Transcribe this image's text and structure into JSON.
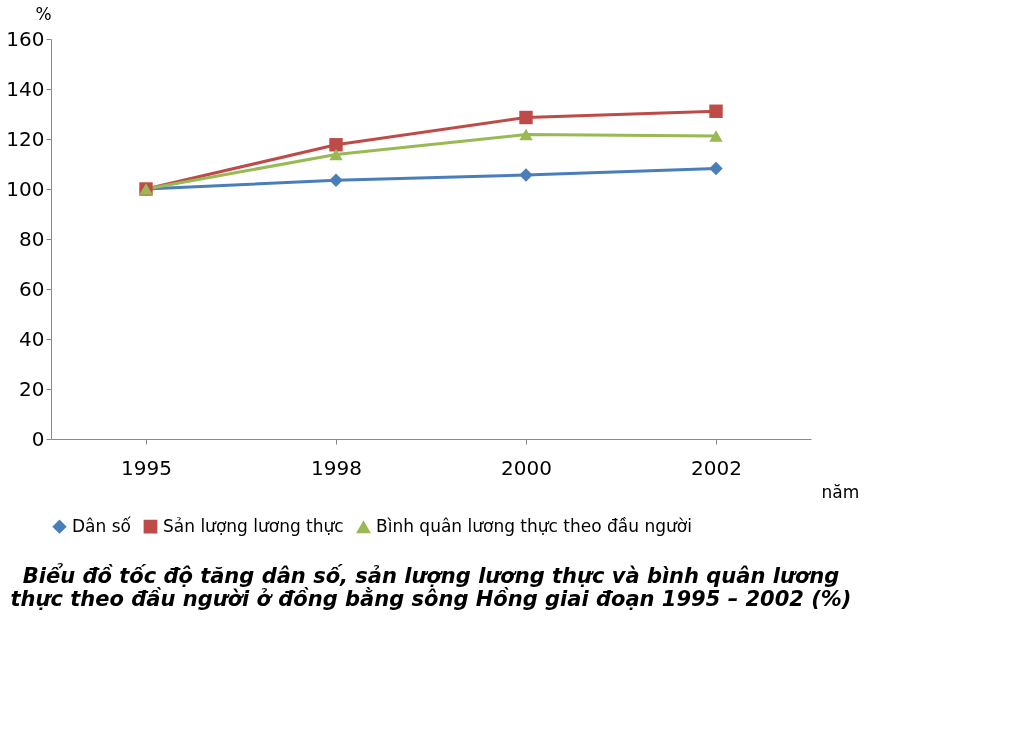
{
  "chart_data": {
    "type": "line",
    "title": "Biểu đồ tốc độ tăng dân số, sản lượng lương thực và bình quân lương\nthực theo đầu người ở đồng bằng sông Hồng giai đoạn 1995 – 2002 (%)",
    "xlabel": "năm",
    "ylabel": "%",
    "categories": [
      "1995",
      "1998",
      "2000",
      "2002"
    ],
    "ylim": [
      0,
      160
    ],
    "yticks": [
      0,
      20,
      40,
      60,
      80,
      100,
      120,
      140,
      160
    ],
    "grid": false,
    "legend": "bottom",
    "series": [
      {
        "name": "Dân số",
        "color": "#4a7ebb",
        "marker": "diamond",
        "values": [
          100,
          103.5,
          105.6,
          108.2
        ]
      },
      {
        "name": "Sản lượng lương thực",
        "color": "#be4b48",
        "marker": "square",
        "values": [
          100,
          117.7,
          128.6,
          131.1
        ]
      },
      {
        "name": "Bình quân lương thực theo đầu người",
        "color": "#98b954",
        "marker": "triangle",
        "values": [
          100,
          113.8,
          121.8,
          121.2
        ]
      }
    ]
  }
}
